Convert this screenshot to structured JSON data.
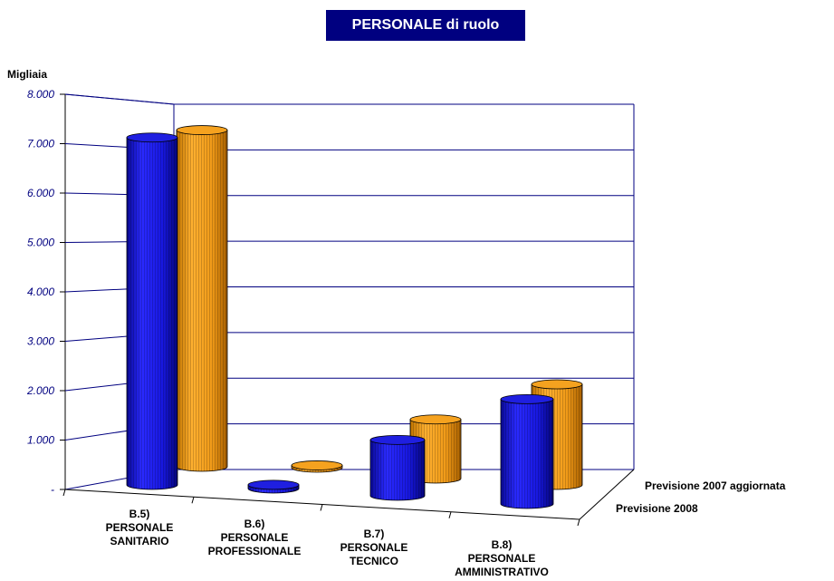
{
  "chart_data": {
    "type": "bar",
    "title": "PERSONALE di ruolo",
    "ylabel": "Migliaia",
    "ylim": [
      0,
      8000
    ],
    "yticks": [
      "-",
      "1.000",
      "2.000",
      "3.000",
      "4.000",
      "5.000",
      "6.000",
      "7.000",
      "8.000"
    ],
    "categories": [
      [
        "B.5)",
        "PERSONALE",
        "SANITARIO"
      ],
      [
        "B.6)",
        "PERSONALE",
        "PROFESSIONALE"
      ],
      [
        "B.7)",
        "PERSONALE",
        "TECNICO"
      ],
      [
        "B.8)",
        "PERSONALE",
        "AMMINISTRATIVO"
      ]
    ],
    "series": [
      {
        "name": "Previsione 2008",
        "color": "#1f1fe0",
        "values": [
          7460,
          80,
          1200,
          2250
        ]
      },
      {
        "name": "Previsione 2007 aggiornata",
        "color": "#f5a21f",
        "values": [
          7230,
          50,
          1270,
          2160
        ]
      }
    ]
  }
}
